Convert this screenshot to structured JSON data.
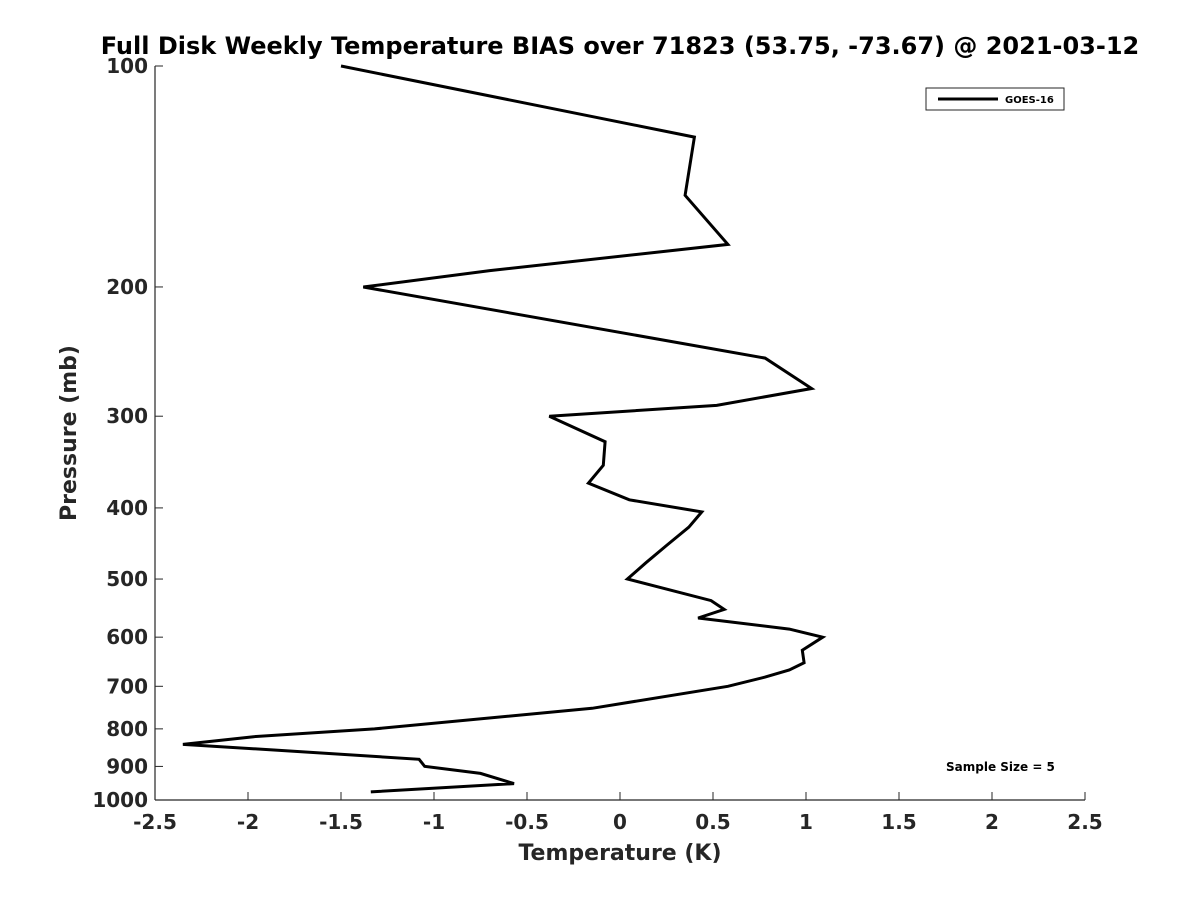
{
  "chart_data": {
    "type": "line",
    "title": "Full Disk Weekly Temperature BIAS over 71823 (53.75, -73.67) @ 2021-03-12",
    "xlabel": "Temperature (K)",
    "ylabel": "Pressure (mb)",
    "xlim": [
      -2.5,
      2.5
    ],
    "ylim": [
      100,
      1000
    ],
    "y_scale": "log",
    "y_reversed": true,
    "x_ticks": [
      "-2.5",
      "-2",
      "-1.5",
      "-1",
      "-0.5",
      "0",
      "0.5",
      "1",
      "1.5",
      "2",
      "2.5"
    ],
    "y_ticks": [
      "100",
      "200",
      "300",
      "400",
      "500",
      "600",
      "700",
      "800",
      "900",
      "1000"
    ],
    "grid": false,
    "legend_position": "top-right",
    "series": [
      {
        "name": "GOES-16",
        "color": "#000000",
        "points": [
          {
            "x": -1.5,
            "y": 100
          },
          {
            "x": 0.4,
            "y": 125
          },
          {
            "x": 0.35,
            "y": 150
          },
          {
            "x": 0.58,
            "y": 175
          },
          {
            "x": -0.7,
            "y": 190
          },
          {
            "x": -1.38,
            "y": 200
          },
          {
            "x": 0.78,
            "y": 250
          },
          {
            "x": 1.03,
            "y": 275
          },
          {
            "x": 0.52,
            "y": 290
          },
          {
            "x": -0.38,
            "y": 300
          },
          {
            "x": -0.08,
            "y": 325
          },
          {
            "x": -0.09,
            "y": 350
          },
          {
            "x": -0.17,
            "y": 370
          },
          {
            "x": 0.05,
            "y": 390
          },
          {
            "x": 0.44,
            "y": 405
          },
          {
            "x": 0.37,
            "y": 425
          },
          {
            "x": 0.25,
            "y": 450
          },
          {
            "x": 0.14,
            "y": 475
          },
          {
            "x": 0.04,
            "y": 500
          },
          {
            "x": 0.49,
            "y": 535
          },
          {
            "x": 0.56,
            "y": 550
          },
          {
            "x": 0.42,
            "y": 565
          },
          {
            "x": 0.91,
            "y": 585
          },
          {
            "x": 1.09,
            "y": 600
          },
          {
            "x": 0.98,
            "y": 625
          },
          {
            "x": 0.99,
            "y": 650
          },
          {
            "x": 0.91,
            "y": 665
          },
          {
            "x": 0.78,
            "y": 680
          },
          {
            "x": 0.58,
            "y": 700
          },
          {
            "x": -0.15,
            "y": 750
          },
          {
            "x": -1.32,
            "y": 800
          },
          {
            "x": -1.97,
            "y": 820
          },
          {
            "x": -2.35,
            "y": 840
          },
          {
            "x": -1.85,
            "y": 855
          },
          {
            "x": -1.08,
            "y": 880
          },
          {
            "x": -1.05,
            "y": 900
          },
          {
            "x": -0.75,
            "y": 920
          },
          {
            "x": -0.57,
            "y": 950
          },
          {
            "x": -1.34,
            "y": 975
          }
        ]
      }
    ],
    "annotations": [
      "Sample Size = 5"
    ]
  }
}
